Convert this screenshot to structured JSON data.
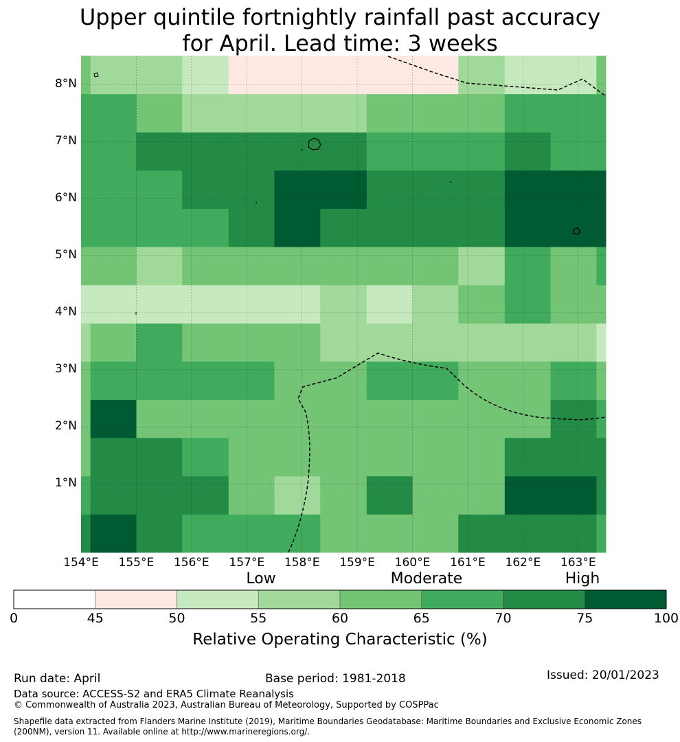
{
  "title": {
    "line1": "Upper quintile fortnightly rainfall past accuracy",
    "line2": "for April. Lead time: 3 weeks"
  },
  "map": {
    "lon_range": [
      154.0,
      163.5
    ],
    "lat_range": [
      -0.2,
      8.5
    ],
    "cell_size_deg": 0.8333,
    "lat_labels": [
      "1°N",
      "2°N",
      "3°N",
      "4°N",
      "5°N",
      "6°N",
      "7°N",
      "8°N"
    ],
    "lon_labels": [
      "154°E",
      "155°E",
      "156°E",
      "157°E",
      "158°E",
      "159°E",
      "160°E",
      "161°E",
      "162°E",
      "163°E"
    ],
    "grid": [
      [
        6,
        7,
        6,
        5,
        5,
        5,
        4,
        4,
        4,
        6,
        6,
        6,
        5
      ],
      [
        5,
        6,
        6,
        6,
        4,
        3,
        4,
        6,
        4,
        4,
        7,
        7,
        6
      ],
      [
        4,
        6,
        6,
        5,
        4,
        4,
        4,
        4,
        4,
        4,
        6,
        6,
        6
      ],
      [
        4,
        7,
        4,
        4,
        4,
        4,
        4,
        4,
        4,
        4,
        4,
        6,
        5
      ],
      [
        4,
        5,
        5,
        5,
        5,
        4,
        4,
        5,
        5,
        4,
        4,
        5,
        4
      ],
      [
        3,
        4,
        5,
        4,
        4,
        4,
        3,
        3,
        3,
        3,
        3,
        3,
        2
      ],
      [
        2,
        2,
        2,
        2,
        2,
        2,
        3,
        2,
        3,
        4,
        5,
        4,
        4
      ],
      [
        4,
        4,
        3,
        4,
        4,
        4,
        4,
        4,
        4,
        3,
        5,
        4,
        5
      ],
      [
        5,
        5,
        5,
        5,
        6,
        7,
        6,
        6,
        6,
        6,
        7,
        7,
        7
      ],
      [
        5,
        5,
        5,
        6,
        6,
        7,
        7,
        6,
        6,
        6,
        7,
        7,
        7
      ],
      [
        5,
        5,
        6,
        6,
        6,
        6,
        6,
        5,
        5,
        5,
        6,
        5,
        5
      ],
      [
        5,
        5,
        4,
        3,
        3,
        3,
        3,
        4,
        4,
        4,
        5,
        5,
        5
      ],
      [
        4,
        3,
        3,
        2,
        1,
        1,
        1,
        1,
        1,
        3,
        2,
        2,
        4
      ]
    ],
    "grid_note": "rows south→north"
  },
  "colorbar": {
    "bounds": [
      0,
      45,
      50,
      55,
      60,
      65,
      70,
      75,
      100
    ],
    "tick_labels": [
      "0",
      "45",
      "50",
      "55",
      "60",
      "65",
      "70",
      "75",
      "100"
    ],
    "colors": [
      "#ffffff",
      "#fee9e2",
      "#c7e9c0",
      "#a1d99b",
      "#74c476",
      "#41ab5d",
      "#238b45",
      "#005a32"
    ],
    "category_labels": {
      "low": "Low",
      "moderate": "Moderate",
      "high": "High"
    },
    "title": "Relative Operating Characteristic (%)"
  },
  "footer": {
    "run_date": "Run date: April",
    "base_period": "Base period: 1981-2018",
    "issued": "Issued: 20/01/2023",
    "data_source": "Data source: ACCESS-S2 and ERA5 Climate Reanalysis",
    "copyright": "© Commonwealth of Australia 2023, Australian Bureau of Meteorology, Supported by COSPPac",
    "shapefile": "Shapefile data extracted from Flanders Marine Institute (2019), Maritime Boundaries Geodatabase: Maritime Boundaries and Exclusive Economic Zones (200NM), version 11. Available online at http://www.marineregions.org/."
  }
}
